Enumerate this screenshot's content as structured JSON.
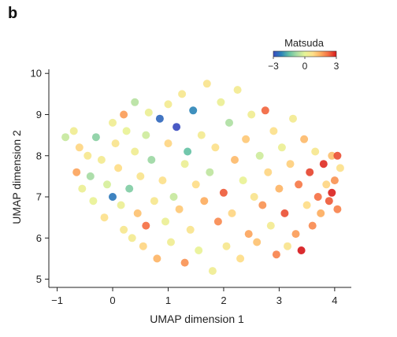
{
  "panel": {
    "letter": "b"
  },
  "chart_data": {
    "type": "scatter",
    "title": "",
    "xlabel": "UMAP dimension 1",
    "ylabel": "UMAP dimension 2",
    "xlim": [
      -1.15,
      4.3
    ],
    "ylim": [
      4.8,
      10.1
    ],
    "xticks": [
      -1,
      0,
      1,
      2,
      3,
      4
    ],
    "yticks": [
      5,
      6,
      7,
      8,
      9,
      10
    ],
    "xtick_labels": [
      "−1",
      "0",
      "1",
      "2",
      "3",
      "4"
    ],
    "ytick_labels": [
      "5",
      "6",
      "7",
      "8",
      "9",
      "10"
    ],
    "grid": false,
    "colorbar": {
      "label": "Matsuda",
      "min": -3,
      "max": 3,
      "ticks": [
        "−3",
        "0",
        "3"
      ],
      "placement": "top-right",
      "colormap": [
        "#3b4cc0",
        "#2b83ba",
        "#66c2a5",
        "#abdda4",
        "#e6f598",
        "#fee08b",
        "#fdae61",
        "#f46d43",
        "#d7191c"
      ]
    },
    "point_cloud_note_free": true,
    "points": [
      [
        -0.85,
        8.45,
        -0.4
      ],
      [
        -0.7,
        8.6,
        0.3
      ],
      [
        -0.6,
        8.2,
        0.9
      ],
      [
        -0.65,
        7.6,
        1.6
      ],
      [
        -0.55,
        7.2,
        0.2
      ],
      [
        -0.45,
        8.0,
        0.5
      ],
      [
        -0.4,
        7.5,
        -0.8
      ],
      [
        -0.35,
        6.9,
        0.1
      ],
      [
        -0.3,
        8.45,
        -1.1
      ],
      [
        -0.2,
        7.9,
        0.4
      ],
      [
        -0.15,
        6.5,
        0.7
      ],
      [
        -0.1,
        7.3,
        -0.2
      ],
      [
        0.0,
        8.8,
        0.3
      ],
      [
        0.05,
        8.3,
        0.6
      ],
      [
        0.0,
        7.0,
        -2.4
      ],
      [
        0.1,
        7.7,
        0.8
      ],
      [
        0.15,
        6.8,
        0.2
      ],
      [
        0.2,
        6.2,
        0.5
      ],
      [
        0.2,
        9.0,
        1.7
      ],
      [
        0.25,
        8.6,
        0.1
      ],
      [
        0.3,
        7.2,
        -1.2
      ],
      [
        0.35,
        6.0,
        0.4
      ],
      [
        0.4,
        8.1,
        0.3
      ],
      [
        0.4,
        9.3,
        -0.6
      ],
      [
        0.45,
        6.6,
        1.2
      ],
      [
        0.5,
        7.5,
        0.6
      ],
      [
        0.55,
        5.8,
        0.9
      ],
      [
        0.6,
        8.5,
        -0.3
      ],
      [
        0.6,
        6.3,
        2.2
      ],
      [
        0.65,
        9.05,
        0.2
      ],
      [
        0.7,
        7.9,
        -0.9
      ],
      [
        0.75,
        6.9,
        0.5
      ],
      [
        0.8,
        5.5,
        1.4
      ],
      [
        0.85,
        8.9,
        -2.6
      ],
      [
        0.9,
        7.4,
        0.7
      ],
      [
        0.95,
        6.4,
        0.2
      ],
      [
        1.0,
        9.25,
        0.4
      ],
      [
        1.0,
        8.3,
        0.9
      ],
      [
        1.05,
        5.9,
        0.3
      ],
      [
        1.1,
        7.0,
        -0.4
      ],
      [
        1.15,
        8.7,
        -3.0
      ],
      [
        1.2,
        6.7,
        1.1
      ],
      [
        1.25,
        9.5,
        0.5
      ],
      [
        1.3,
        7.8,
        0.2
      ],
      [
        1.3,
        5.4,
        1.8
      ],
      [
        1.35,
        8.1,
        -1.5
      ],
      [
        1.4,
        6.2,
        0.6
      ],
      [
        1.45,
        9.1,
        -2.2
      ],
      [
        1.5,
        7.3,
        0.8
      ],
      [
        1.55,
        5.7,
        0.1
      ],
      [
        1.6,
        8.5,
        0.4
      ],
      [
        1.65,
        6.9,
        1.5
      ],
      [
        1.7,
        9.75,
        0.6
      ],
      [
        1.75,
        7.6,
        -0.5
      ],
      [
        1.8,
        5.2,
        0.3
      ],
      [
        1.85,
        8.2,
        0.7
      ],
      [
        1.9,
        6.4,
        1.9
      ],
      [
        1.95,
        9.3,
        0.2
      ],
      [
        2.0,
        7.1,
        2.4
      ],
      [
        2.05,
        5.8,
        0.5
      ],
      [
        2.1,
        8.8,
        -0.7
      ],
      [
        2.15,
        6.6,
        0.9
      ],
      [
        2.2,
        7.9,
        1.3
      ],
      [
        2.25,
        9.6,
        0.4
      ],
      [
        2.3,
        5.5,
        0.8
      ],
      [
        2.35,
        7.4,
        0.1
      ],
      [
        2.4,
        8.4,
        1.1
      ],
      [
        2.45,
        6.1,
        1.6
      ],
      [
        2.5,
        9.0,
        0.3
      ],
      [
        2.55,
        7.0,
        0.6
      ],
      [
        2.6,
        5.9,
        1.2
      ],
      [
        2.65,
        8.0,
        -0.3
      ],
      [
        2.7,
        6.8,
        1.8
      ],
      [
        2.75,
        9.1,
        2.3
      ],
      [
        2.8,
        7.6,
        0.9
      ],
      [
        2.85,
        6.3,
        0.4
      ],
      [
        2.9,
        8.6,
        0.7
      ],
      [
        2.95,
        5.6,
        2.0
      ],
      [
        3.0,
        7.2,
        1.4
      ],
      [
        3.05,
        8.2,
        0.2
      ],
      [
        3.1,
        6.6,
        2.5
      ],
      [
        3.15,
        5.8,
        0.6
      ],
      [
        3.2,
        7.8,
        1.0
      ],
      [
        3.25,
        8.9,
        0.4
      ],
      [
        3.3,
        6.1,
        1.7
      ],
      [
        3.35,
        7.3,
        2.1
      ],
      [
        3.4,
        5.7,
        3.0
      ],
      [
        3.45,
        8.4,
        1.3
      ],
      [
        3.5,
        6.8,
        0.8
      ],
      [
        3.55,
        7.6,
        2.6
      ],
      [
        3.6,
        6.3,
        1.9
      ],
      [
        3.65,
        8.1,
        0.5
      ],
      [
        3.7,
        7.0,
        2.2
      ],
      [
        3.75,
        6.6,
        1.5
      ],
      [
        3.8,
        7.8,
        2.8
      ],
      [
        3.85,
        7.3,
        0.9
      ],
      [
        3.9,
        6.9,
        2.4
      ],
      [
        3.95,
        8.0,
        1.2
      ],
      [
        4.0,
        7.4,
        1.8
      ],
      [
        4.05,
        6.7,
        2.0
      ],
      [
        4.1,
        7.7,
        0.7
      ],
      [
        4.05,
        8.0,
        2.5
      ],
      [
        3.95,
        7.1,
        2.9
      ]
    ]
  }
}
